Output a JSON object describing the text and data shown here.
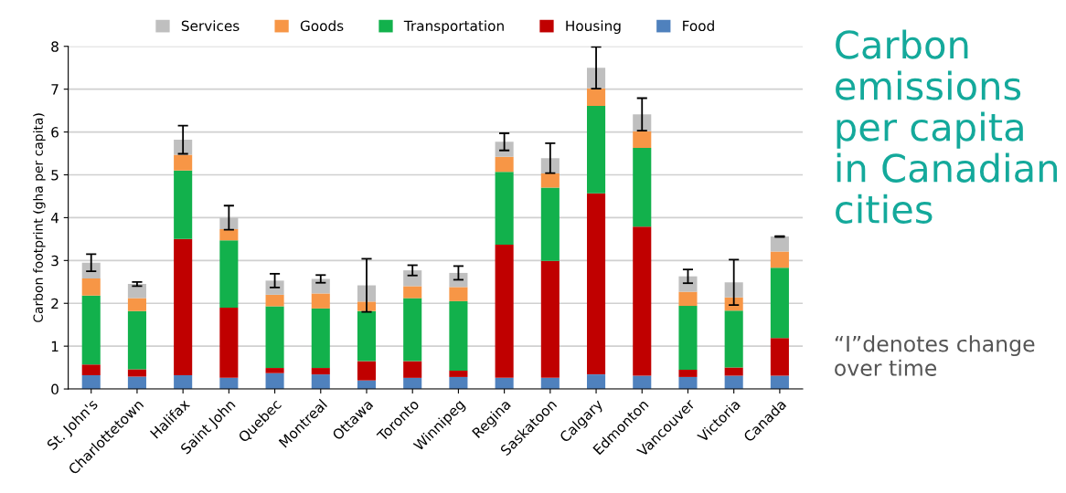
{
  "chart_data": {
    "type": "bar",
    "stacked": true,
    "title": "Carbon emissions per capita in Canadian cities",
    "ylabel": "Carbon footprint (gha per capita)",
    "annotations": [
      "“I”denotes change over time"
    ],
    "categories": [
      "St. John's",
      "Charlottetown",
      "Halifax",
      "Saint John",
      "Quebec",
      "Montreal",
      "Ottawa",
      "Toronto",
      "Winnipeg",
      "Regina",
      "Saskatoon",
      "Calgary",
      "Edmonton",
      "Vancouver",
      "Victoria",
      "Canada"
    ],
    "series": [
      {
        "name": "Food",
        "color": "#4f81bd",
        "values": [
          0.32,
          0.29,
          0.32,
          0.26,
          0.37,
          0.34,
          0.2,
          0.26,
          0.28,
          0.26,
          0.26,
          0.34,
          0.31,
          0.28,
          0.31,
          0.31
        ]
      },
      {
        "name": "Housing",
        "color": "#c00000",
        "values": [
          0.25,
          0.17,
          3.18,
          1.64,
          0.12,
          0.15,
          0.45,
          0.39,
          0.15,
          3.11,
          2.73,
          4.23,
          3.48,
          0.17,
          0.19,
          0.88
        ]
      },
      {
        "name": "Transportation",
        "color": "#12b14c",
        "values": [
          1.61,
          1.36,
          1.6,
          1.57,
          1.44,
          1.39,
          1.17,
          1.47,
          1.62,
          1.7,
          1.71,
          2.04,
          1.84,
          1.49,
          1.33,
          1.64
        ]
      },
      {
        "name": "Goods",
        "color": "#f79646",
        "values": [
          0.4,
          0.3,
          0.37,
          0.26,
          0.27,
          0.35,
          0.22,
          0.28,
          0.33,
          0.35,
          0.33,
          0.41,
          0.39,
          0.33,
          0.31,
          0.38
        ]
      },
      {
        "name": "Services",
        "color": "#bfbfbf",
        "values": [
          0.37,
          0.33,
          0.35,
          0.27,
          0.33,
          0.34,
          0.38,
          0.37,
          0.33,
          0.35,
          0.36,
          0.48,
          0.39,
          0.36,
          0.35,
          0.35
        ],
        "errors": [
          0.2,
          0.05,
          0.33,
          0.28,
          0.16,
          0.09,
          0.62,
          0.12,
          0.16,
          0.2,
          0.35,
          0.49,
          0.38,
          0.16,
          0.53,
          0.01
        ]
      }
    ],
    "ylim": [
      0,
      8
    ],
    "yticks": [
      0,
      1,
      2,
      3,
      4,
      5,
      6,
      7,
      8
    ],
    "grid": "y",
    "legend": "top"
  }
}
